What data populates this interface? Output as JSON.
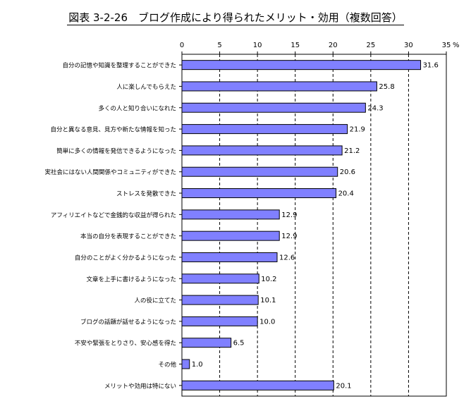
{
  "chart_data": {
    "type": "bar",
    "orientation": "horizontal",
    "title": "図表 3-2-26　ブログ作成により得られたメリット・効用（複数回答）",
    "unit": "%",
    "xlim": [
      0,
      35
    ],
    "ticks": [
      0,
      5,
      10,
      15,
      20,
      25,
      30,
      35
    ],
    "grid": "vertical-dashed",
    "bar_color": "#8080ff",
    "categories": [
      "自分の記憶や知識を整理することができた",
      "人に楽しんでもらえた",
      "多くの人と知り合いになれた",
      "自分と異なる意見、見方や新たな情報を知った",
      "簡単に多くの情報を発信できるようになった",
      "実社会にはない人間関係やコミュニティができた",
      "ストレスを発散できた",
      "アフィリエイトなどで金銭的な収益が得られた",
      "本当の自分を表現することができた",
      "自分のことがよく分かるようになった",
      "文章を上手に書けるようになった",
      "人の役に立てた",
      "ブログの話題が話せるようになった",
      "不安や緊張をとりさり、安心感を得た",
      "その他",
      "メリットや効用は特にない"
    ],
    "values": [
      31.6,
      25.8,
      24.3,
      21.9,
      21.2,
      20.6,
      20.4,
      12.9,
      12.9,
      12.6,
      10.2,
      10.1,
      10.0,
      6.5,
      1.0,
      20.1
    ],
    "value_labels": [
      "31.6",
      "25.8",
      "24.3",
      "21.9",
      "21.2",
      "20.6",
      "20.4",
      "12.9",
      "12.9",
      "12.6",
      "10.2",
      "10.1",
      "10.0",
      "6.5",
      "1.0",
      "20.1"
    ]
  }
}
